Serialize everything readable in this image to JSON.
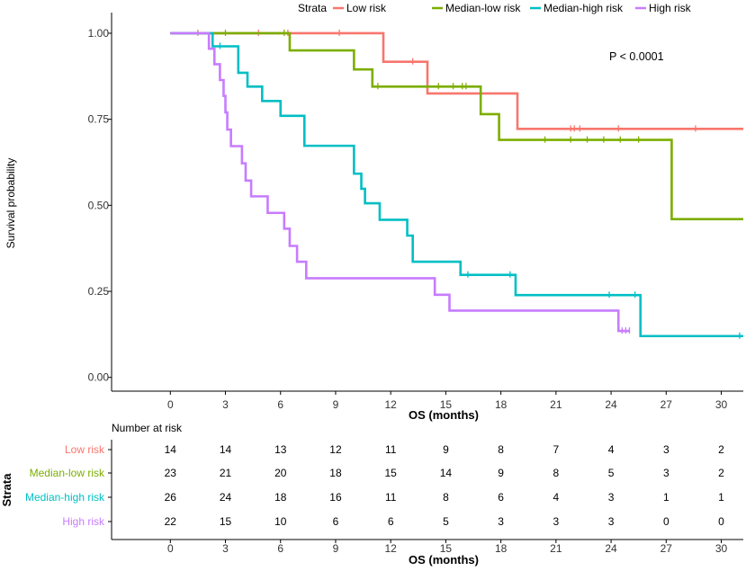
{
  "colors": {
    "low": "#F8766D",
    "median_low": "#7CAE00",
    "median_high": "#00BFC4",
    "high": "#C77CFF"
  },
  "chart_data": {
    "type": "line",
    "title": "",
    "xlabel": "OS (months)",
    "ylabel": "Survival probability",
    "xlim": [
      -3.2,
      31.2
    ],
    "ylim": [
      -0.04,
      1.06
    ],
    "xticks": [
      0,
      3,
      6,
      9,
      12,
      15,
      18,
      21,
      24,
      27,
      30
    ],
    "xtick_labels": [
      "0",
      "3",
      "6",
      "9",
      "12",
      "15",
      "18",
      "21",
      "24",
      "27",
      "30"
    ],
    "yticks": [
      0,
      0.25,
      0.5,
      0.75,
      1
    ],
    "ytick_labels": [
      "0.00",
      "0.25",
      "0.50",
      "0.75",
      "1.00"
    ],
    "legend_title": "Strata",
    "legend_position": "top",
    "annotation": "P < 0.0001",
    "series": [
      {
        "name": "Low risk",
        "color_key": "low",
        "steps": [
          [
            0,
            1.0
          ],
          [
            11.6,
            0.917
          ],
          [
            14.0,
            0.825
          ],
          [
            18.9,
            0.722
          ],
          [
            31.2,
            0.722
          ]
        ],
        "censor": [
          1.5,
          4.8,
          6.4,
          9.2,
          13.2,
          21.8,
          22.0,
          22.3,
          24.4,
          28.6
        ]
      },
      {
        "name": "Median-low risk",
        "color_key": "median_low",
        "steps": [
          [
            0,
            1.0
          ],
          [
            6.5,
            0.95
          ],
          [
            10.0,
            0.895
          ],
          [
            11.0,
            0.845
          ],
          [
            16.9,
            0.765
          ],
          [
            17.9,
            0.69
          ],
          [
            27.3,
            0.46
          ],
          [
            31.2,
            0.46
          ]
        ],
        "censor": [
          3.0,
          6.2,
          11.3,
          14.6,
          15.4,
          15.9,
          16.1,
          20.4,
          21.8,
          22.7,
          23.6,
          24.5,
          25.5
        ]
      },
      {
        "name": "Median-high risk",
        "color_key": "median_high",
        "steps": [
          [
            0,
            1.0
          ],
          [
            2.3,
            0.962
          ],
          [
            3.7,
            0.885
          ],
          [
            4.2,
            0.845
          ],
          [
            5.0,
            0.803
          ],
          [
            6.0,
            0.76
          ],
          [
            7.3,
            0.673
          ],
          [
            10.0,
            0.592
          ],
          [
            10.4,
            0.548
          ],
          [
            10.6,
            0.506
          ],
          [
            11.4,
            0.458
          ],
          [
            12.9,
            0.412
          ],
          [
            13.2,
            0.336
          ],
          [
            15.8,
            0.298
          ],
          [
            18.8,
            0.239
          ],
          [
            25.6,
            0.12
          ],
          [
            31.2,
            0.12
          ]
        ],
        "censor": [
          2.7,
          16.2,
          18.5,
          23.9,
          25.3,
          31.0
        ]
      },
      {
        "name": "High risk",
        "color_key": "high",
        "steps": [
          [
            0,
            1.0
          ],
          [
            2.1,
            0.955
          ],
          [
            2.4,
            0.91
          ],
          [
            2.7,
            0.864
          ],
          [
            2.9,
            0.818
          ],
          [
            3.0,
            0.77
          ],
          [
            3.1,
            0.72
          ],
          [
            3.3,
            0.672
          ],
          [
            3.9,
            0.622
          ],
          [
            4.1,
            0.572
          ],
          [
            4.4,
            0.526
          ],
          [
            5.3,
            0.478
          ],
          [
            6.2,
            0.432
          ],
          [
            6.5,
            0.382
          ],
          [
            6.9,
            0.336
          ],
          [
            7.4,
            0.288
          ],
          [
            14.4,
            0.24
          ],
          [
            15.2,
            0.194
          ],
          [
            24.4,
            0.135
          ],
          [
            25.0,
            0.135
          ]
        ],
        "censor": [
          24.6,
          24.8,
          25.0
        ]
      }
    ]
  },
  "risk_table": {
    "title": "Number at risk",
    "strata_label": "Strata",
    "xlabel": "OS (months)",
    "rows": [
      {
        "label": "Low risk",
        "color_key": "low",
        "values": [
          "14",
          "14",
          "13",
          "12",
          "11",
          "9",
          "8",
          "7",
          "4",
          "3",
          "2"
        ]
      },
      {
        "label": "Median-low risk",
        "color_key": "median_low",
        "values": [
          "23",
          "21",
          "20",
          "18",
          "15",
          "14",
          "9",
          "8",
          "5",
          "3",
          "2"
        ]
      },
      {
        "label": "Median-high risk",
        "color_key": "median_high",
        "values": [
          "26",
          "24",
          "18",
          "16",
          "11",
          "8",
          "6",
          "4",
          "3",
          "1",
          "1"
        ]
      },
      {
        "label": "High risk",
        "color_key": "high",
        "values": [
          "22",
          "15",
          "10",
          "6",
          "6",
          "5",
          "3",
          "3",
          "3",
          "0",
          "0"
        ]
      }
    ]
  }
}
